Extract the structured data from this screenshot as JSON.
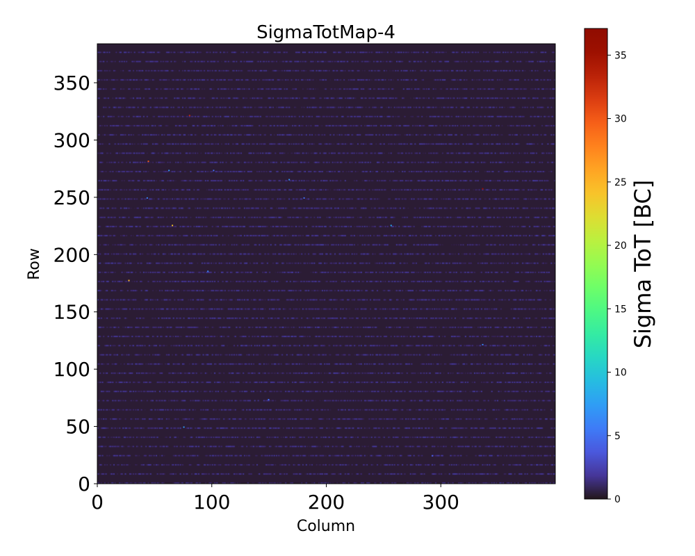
{
  "chart_data": {
    "type": "heatmap",
    "title": "SigmaTotMap-4",
    "xlabel": "Column",
    "ylabel": "Row",
    "xlim": [
      0,
      400
    ],
    "ylim": [
      0,
      384
    ],
    "xticks": [
      0,
      100,
      200,
      300
    ],
    "yticks": [
      0,
      50,
      100,
      150,
      200,
      250,
      300,
      350
    ],
    "colormap": "turbo",
    "colorbar": {
      "label": "Sigma ToT [BC]",
      "range": [
        0,
        37.1
      ],
      "ticks": [
        0,
        5,
        10,
        15,
        20,
        25,
        30,
        35
      ]
    },
    "background_value": 0.3,
    "striped_row_period": 8,
    "striped_row_value_range": [
      0.5,
      2.5
    ],
    "hot_pixels": [
      {
        "col": 80,
        "row": 321,
        "value": 33
      },
      {
        "col": 44,
        "row": 281,
        "value": 30
      },
      {
        "col": 62,
        "row": 273,
        "value": 7
      },
      {
        "col": 101,
        "row": 273,
        "value": 5
      },
      {
        "col": 167,
        "row": 265,
        "value": 7
      },
      {
        "col": 43,
        "row": 249,
        "value": 6
      },
      {
        "col": 180,
        "row": 249,
        "value": 5
      },
      {
        "col": 336,
        "row": 257,
        "value": 35
      },
      {
        "col": 65,
        "row": 225,
        "value": 24
      },
      {
        "col": 256,
        "row": 225,
        "value": 8
      },
      {
        "col": 96,
        "row": 185,
        "value": 6
      },
      {
        "col": 27,
        "row": 177,
        "value": 25
      },
      {
        "col": 336,
        "row": 121,
        "value": 6
      },
      {
        "col": 149,
        "row": 73,
        "value": 5
      },
      {
        "col": 75,
        "row": 49,
        "value": 7
      },
      {
        "col": 292,
        "row": 24,
        "value": 4
      }
    ]
  }
}
